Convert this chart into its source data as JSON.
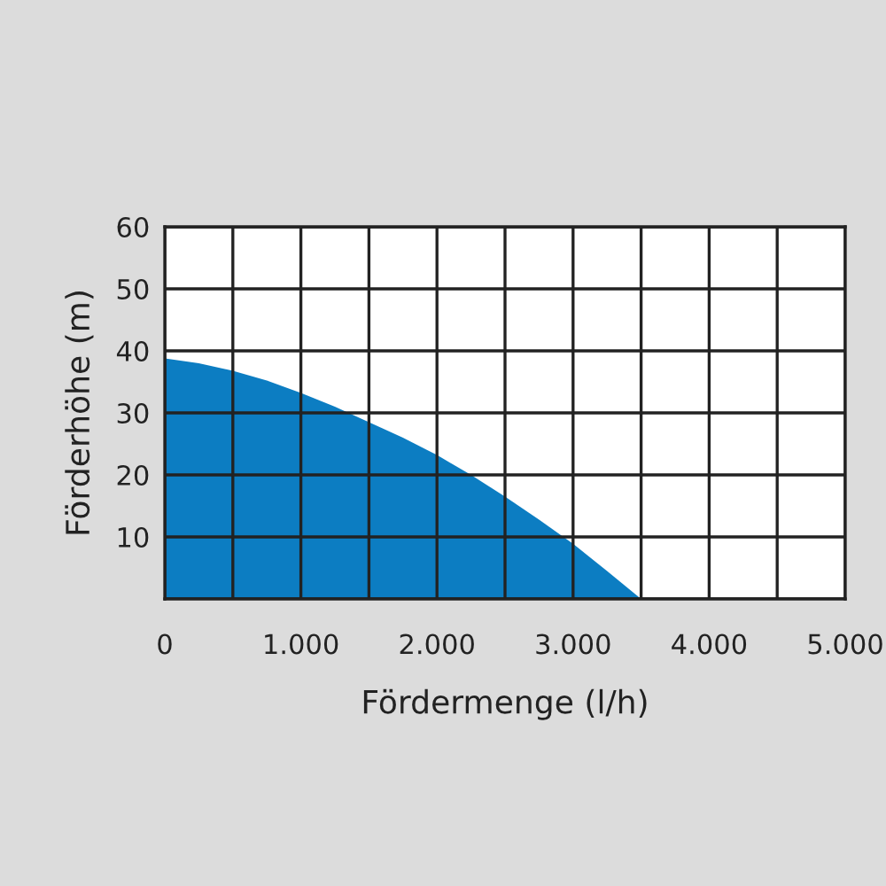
{
  "chart_data": {
    "type": "area",
    "xlabel": "Fördermenge (l/h)",
    "ylabel": "Förderhöhe (m)",
    "x": [
      0,
      250,
      500,
      750,
      1000,
      1250,
      1500,
      1750,
      2000,
      2250,
      2500,
      2750,
      3000,
      3250,
      3500
    ],
    "series": [
      {
        "color": "#0c7dc2",
        "values": [
          38.8,
          38,
          36.8,
          35.2,
          33.2,
          31,
          28.5,
          26,
          23.2,
          20,
          16.5,
          12.8,
          8.9,
          4.5,
          0
        ]
      }
    ],
    "xlim": [
      0,
      5000
    ],
    "ylim": [
      0,
      60
    ],
    "xticks": [
      0,
      {
        "value": 500,
        "label": null
      },
      {
        "value": 1000,
        "label": "1.000"
      },
      {
        "value": 1500,
        "label": null
      },
      {
        "value": 2000,
        "label": "2.000"
      },
      {
        "value": 2500,
        "label": null
      },
      {
        "value": 3000,
        "label": "3.000"
      },
      {
        "value": 3500,
        "label": null
      },
      {
        "value": 4000,
        "label": "4.000"
      },
      {
        "value": 4500,
        "label": null
      },
      {
        "value": 5000,
        "label": "5.000"
      }
    ],
    "yticks": [
      {
        "value": 0,
        "label": null
      },
      10,
      20,
      30,
      40,
      50,
      60
    ],
    "grid": true
  }
}
